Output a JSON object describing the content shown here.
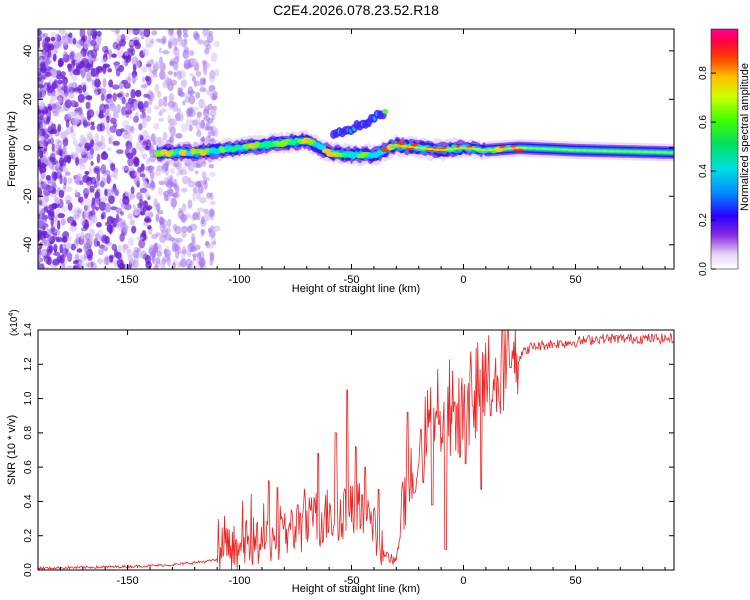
{
  "title": "C2E4.2026.078.23.52.R18",
  "chart_data": [
    {
      "type": "heatmap",
      "title": "C2E4.2026.078.23.52.R18",
      "xlabel": "Height of straight line (km)",
      "ylabel": "Frequency (Hz)",
      "xlim": [
        -190,
        94
      ],
      "ylim": [
        -50,
        49
      ],
      "x_ticks": [
        -150,
        -100,
        -50,
        0,
        50
      ],
      "x_tick_labels": [
        "-150",
        "-100",
        "-50",
        "0",
        "50"
      ],
      "y_ticks": [
        -40,
        -20,
        0,
        20,
        40
      ],
      "y_tick_labels": [
        "-40",
        "-20",
        "0",
        "20",
        "40"
      ],
      "description_series": {
        "noise_region_end_km": -120,
        "main_ridge_frequency_hz": [
          [
            -137,
            -2
          ],
          [
            -120,
            -2
          ],
          [
            -100,
            0
          ],
          [
            -80,
            2
          ],
          [
            -70,
            3
          ],
          [
            -60,
            -2
          ],
          [
            -50,
            -3
          ],
          [
            -40,
            -3
          ],
          [
            -30,
            1
          ],
          [
            -20,
            0
          ],
          [
            -10,
            -1
          ],
          [
            0,
            0
          ],
          [
            10,
            -1
          ],
          [
            25,
            0
          ],
          [
            50,
            -1
          ],
          [
            94,
            -2
          ]
        ],
        "side_branch_frequency_hz": [
          [
            -55,
            6
          ],
          [
            -45,
            10
          ],
          [
            -35,
            15
          ]
        ]
      },
      "colorbar": {
        "label": "Normalized spectral amplitude",
        "range": [
          0,
          0.98
        ],
        "ticks": [
          0.0,
          0.2,
          0.4,
          0.6,
          0.8
        ],
        "tick_labels": [
          "0.0",
          "0.2",
          "0.4",
          "0.6",
          "0.8"
        ]
      }
    },
    {
      "type": "line",
      "xlabel": "Height of straight line (km)",
      "ylabel": "SNR (10 * v/v)",
      "scale_label": "(x10",
      "scale_exponent": "4",
      "scale_close": ")",
      "xlim": [
        -190,
        94
      ],
      "ylim": [
        0,
        1.4
      ],
      "x_ticks": [
        -150,
        -100,
        -50,
        0,
        50
      ],
      "x_tick_labels": [
        "-150",
        "-100",
        "-50",
        "0",
        "50"
      ],
      "y_ticks": [
        0.0,
        0.2,
        0.4,
        0.6,
        0.8,
        1.0,
        1.2,
        1.4
      ],
      "y_tick_labels": [
        "0.0",
        "0.2",
        "0.4",
        "0.6",
        "0.8",
        "1.0",
        "1.2",
        "1.4"
      ],
      "series": [
        {
          "name": "SNR",
          "color": "#ee2222",
          "envelope": [
            [
              -190,
              0.01
            ],
            [
              -150,
              0.02
            ],
            [
              -130,
              0.03
            ],
            [
              -115,
              0.05
            ],
            [
              -100,
              0.08
            ],
            [
              -90,
              0.12
            ],
            [
              -80,
              0.15
            ],
            [
              -70,
              0.2
            ],
            [
              -60,
              0.25
            ],
            [
              -50,
              0.3
            ],
            [
              -45,
              0.25
            ],
            [
              -40,
              0.15
            ],
            [
              -35,
              0.05
            ],
            [
              -30,
              0.02
            ],
            [
              -27,
              0.3
            ],
            [
              -20,
              0.55
            ],
            [
              -15,
              0.75
            ],
            [
              -10,
              0.8
            ],
            [
              -5,
              0.85
            ],
            [
              0,
              0.82
            ],
            [
              5,
              0.9
            ],
            [
              10,
              0.95
            ],
            [
              15,
              1.05
            ],
            [
              20,
              1.15
            ],
            [
              25,
              1.25
            ],
            [
              30,
              1.3
            ],
            [
              40,
              1.32
            ],
            [
              50,
              1.33
            ],
            [
              60,
              1.35
            ],
            [
              94,
              1.35
            ]
          ],
          "peaks": [
            [
              -87,
              0.52
            ],
            [
              -83,
              0.48
            ],
            [
              -74,
              0.38
            ],
            [
              -65,
              0.68
            ],
            [
              -57,
              0.8
            ],
            [
              -52,
              1.05
            ],
            [
              -48,
              0.72
            ],
            [
              -44,
              0.6
            ],
            [
              -38,
              0.47
            ],
            [
              -33,
              0.32
            ],
            [
              -25,
              0.92
            ],
            [
              -22,
              0.45
            ],
            [
              -19,
              0.82
            ],
            [
              -14,
              0.38
            ],
            [
              -11,
              0.85
            ],
            [
              -8,
              0.12
            ],
            [
              -4,
              0.98
            ],
            [
              1,
              0.62
            ],
            [
              4,
              0.96
            ],
            [
              8,
              0.47
            ],
            [
              12,
              0.9
            ],
            [
              16,
              0.98
            ],
            [
              21,
              1.18
            ],
            [
              25,
              1.22
            ]
          ]
        }
      ]
    }
  ]
}
